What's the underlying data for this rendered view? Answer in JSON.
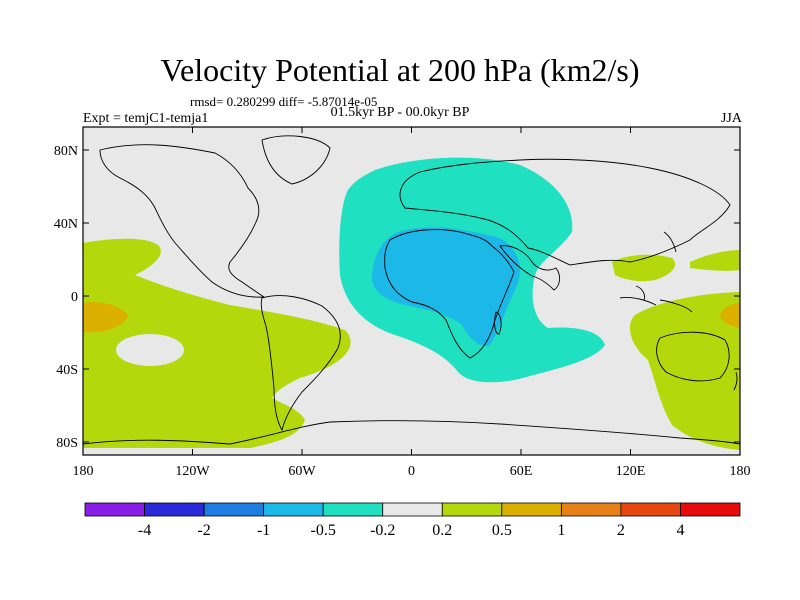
{
  "title": "Velocity Potential at 200 hPa (km2/s)",
  "stats": {
    "rmsd_label": "rmsd=",
    "rmsd": "0.280299",
    "diff_label": "diff=",
    "diff": "-5.87014e-05"
  },
  "experiment": "Expt = temjC1-temja1",
  "period": "01.5kyr BP - 00.0kyr BP",
  "season": "JJA",
  "axes": {
    "lat_ticks": [
      "80N",
      "40N",
      "0",
      "40S",
      "80S"
    ],
    "lon_ticks": [
      "180",
      "120W",
      "60W",
      "0",
      "60E",
      "120E",
      "180"
    ]
  },
  "colorbar": {
    "colors": [
      "#8a1ee8",
      "#2a2ad8",
      "#1b7ee0",
      "#1bb8e8",
      "#1fe0c0",
      "#e8e8e8",
      "#b5d80c",
      "#dcb000",
      "#e88018",
      "#e84810",
      "#e80c0c"
    ],
    "labels": [
      "-4",
      "-2",
      "-1",
      "-0.5",
      "-0.2",
      "0.2",
      "0.5",
      "1",
      "2",
      "4"
    ]
  },
  "map_colors": {
    "background": "#e8e8e8",
    "cyan": "#1fe0c0",
    "blue": "#1bb8e8",
    "lime": "#b5d80c",
    "orange": "#dcb000"
  }
}
